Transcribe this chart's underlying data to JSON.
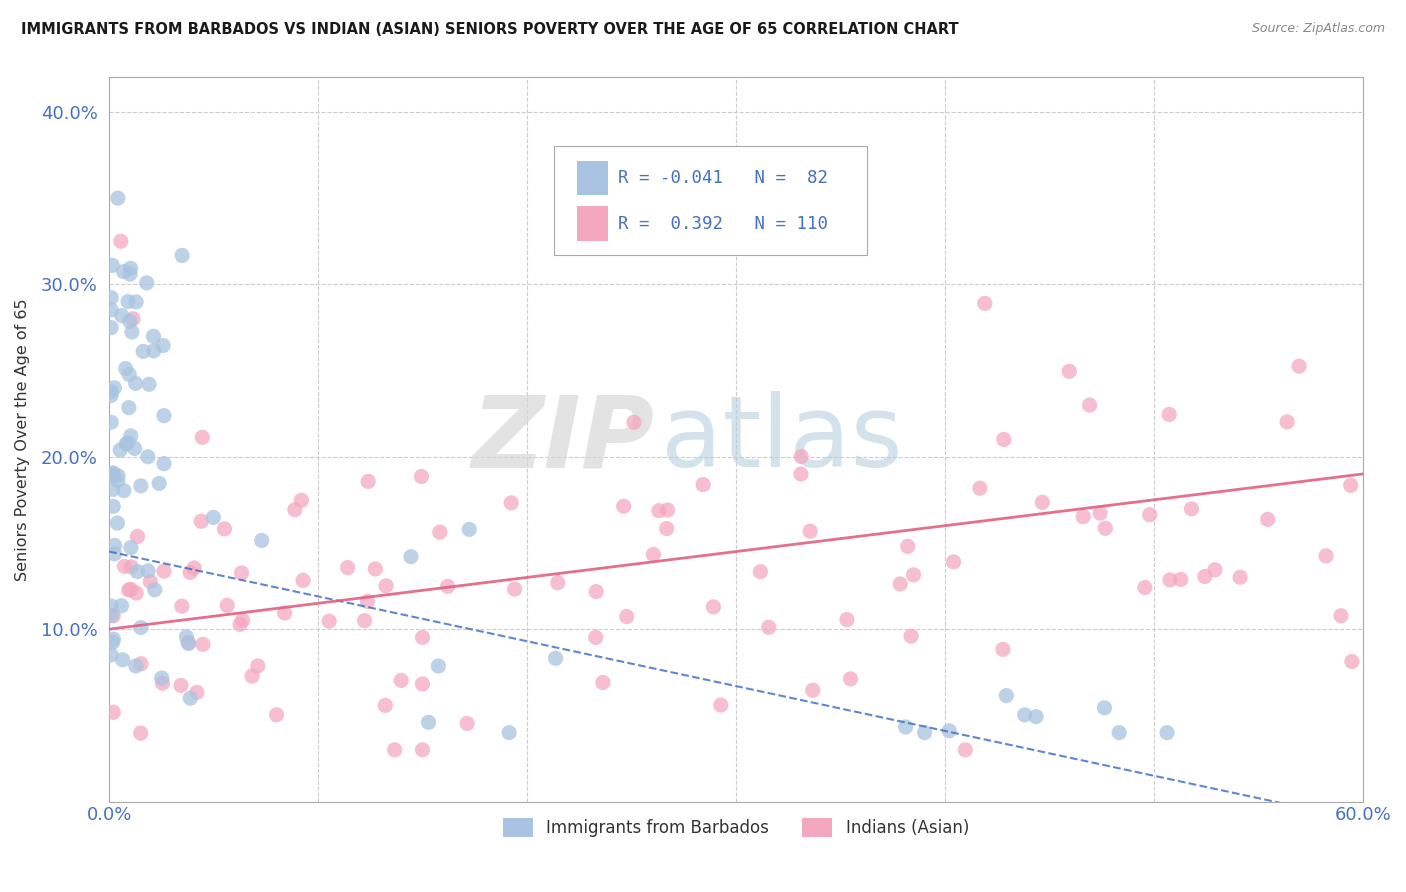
{
  "title": "IMMIGRANTS FROM BARBADOS VS INDIAN (ASIAN) SENIORS POVERTY OVER THE AGE OF 65 CORRELATION CHART",
  "source": "Source: ZipAtlas.com",
  "ylabel": "Seniors Poverty Over the Age of 65",
  "xlim": [
    0.0,
    0.6
  ],
  "ylim": [
    0.0,
    0.42
  ],
  "barbados_color": "#a8c4e0",
  "indian_color": "#f4a8c0",
  "barbados_line_color": "#4472c4",
  "indian_line_color": "#e06080",
  "background_color": "#ffffff",
  "legend_text1": "R = -0.041   N =  82",
  "legend_text2": "R =  0.392   N = 110",
  "watermark_zip": "ZIP",
  "watermark_atlas": "atlas",
  "seed": 17
}
